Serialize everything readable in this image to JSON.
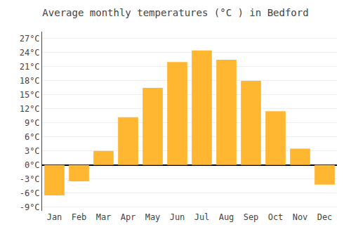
{
  "chart_data": {
    "type": "bar",
    "title": "Average monthly temperatures (°C ) in Bedford",
    "categories": [
      "Jan",
      "Feb",
      "Mar",
      "Apr",
      "May",
      "Jun",
      "Jul",
      "Aug",
      "Sep",
      "Oct",
      "Nov",
      "Dec"
    ],
    "values": [
      -6.5,
      -3.5,
      3.0,
      10.2,
      16.5,
      22.0,
      24.5,
      22.5,
      18.0,
      11.5,
      3.5,
      -4.2
    ],
    "color": "#FFB732",
    "ylim": [
      -9.8,
      28.5
    ],
    "yticks": [
      {
        "value": -9,
        "label": "-9°C"
      },
      {
        "value": -6,
        "label": "-6°C"
      },
      {
        "value": -3,
        "label": "-3°C"
      },
      {
        "value": 0,
        "label": "0°C"
      },
      {
        "value": 3,
        "label": "3°C"
      },
      {
        "value": 6,
        "label": "6°C"
      },
      {
        "value": 9,
        "label": "9°C"
      },
      {
        "value": 12,
        "label": "12°C"
      },
      {
        "value": 15,
        "label": "15°C"
      },
      {
        "value": 18,
        "label": "18°C"
      },
      {
        "value": 21,
        "label": "21°C"
      },
      {
        "value": 24,
        "label": "24°C"
      },
      {
        "value": 27,
        "label": "27°C"
      }
    ],
    "grid": true
  }
}
